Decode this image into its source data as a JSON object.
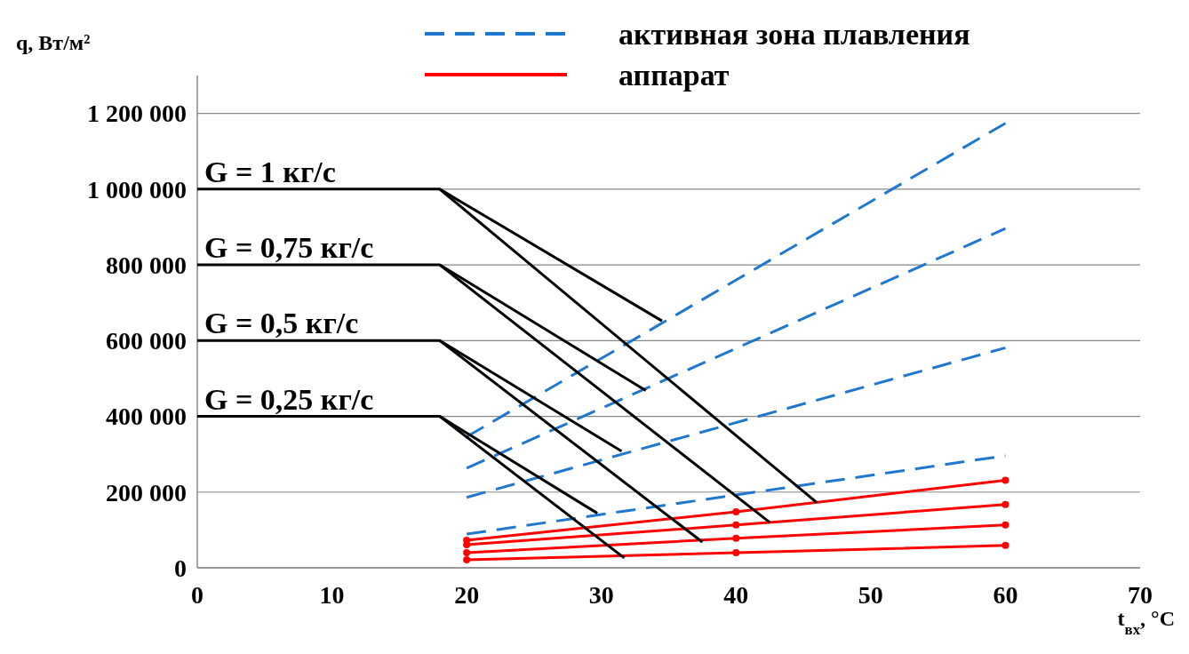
{
  "chart_data": {
    "type": "line",
    "xlabel": "t$_{вх}$, °C",
    "ylabel": "q, Вт/м²",
    "xlim": [
      0,
      70
    ],
    "xticks": [
      0,
      10,
      20,
      30,
      40,
      50,
      60,
      70
    ],
    "ylim": [
      0,
      1300000
    ],
    "yticks": [
      0,
      {
        "value": 200000,
        "label": "200 000"
      },
      {
        "value": 400000,
        "label": "400 000"
      },
      {
        "value": 600000,
        "label": "600 000"
      },
      {
        "value": 800000,
        "label": "800 000"
      },
      {
        "value": 1000000,
        "label": "1 000 000"
      },
      {
        "value": 1200000,
        "label": "1 200 000"
      }
    ],
    "grid": "y",
    "legend": "top right",
    "annotations": [
      "G = 1 кг/с",
      "G = 0,75 кг/с",
      "G = 0,5 кг/с",
      "G = 0,25 кг/с"
    ],
    "series": [
      {
        "name": "активная зона плавления",
        "color": "#1f77d0",
        "x": [
          20,
          60
        ],
        "values": [
          346000,
          1174000
        ],
        "line_style": "dashed",
        "marker": "none"
      },
      {
        "color": "#1f77d0",
        "x": [
          20,
          60
        ],
        "values": [
          263000,
          896000
        ],
        "line_style": "dashed",
        "marker": "none"
      },
      {
        "color": "#1f77d0",
        "x": [
          20,
          60
        ],
        "values": [
          186000,
          581000
        ],
        "line_style": "dashed",
        "marker": "none"
      },
      {
        "color": "#1f77d0",
        "x": [
          20,
          60
        ],
        "values": [
          89000,
          296000
        ],
        "line_style": "dashed",
        "marker": "none"
      },
      {
        "name": "аппарат",
        "color": "#ff0000",
        "x": [
          20,
          40,
          60
        ],
        "values": [
          73000,
          148000,
          231000
        ],
        "line_style": "solid",
        "marker": "circle"
      },
      {
        "color": "#ff0000",
        "x": [
          20,
          40,
          60
        ],
        "values": [
          61000,
          113000,
          167000
        ],
        "line_style": "solid",
        "marker": "circle"
      },
      {
        "color": "#ff0000",
        "x": [
          20,
          40,
          60
        ],
        "values": [
          40000,
          78000,
          113000
        ],
        "line_style": "solid",
        "marker": "circle"
      },
      {
        "color": "#ff0000",
        "x": [
          20,
          40,
          60
        ],
        "values": [
          21000,
          40000,
          59000
        ],
        "line_style": "solid",
        "marker": "circle"
      },
      {
        "color": "#000000",
        "x": [
          0,
          18,
          34.5
        ],
        "values": [
          1000000,
          1000000,
          652000
        ],
        "line_style": "solid",
        "marker": "none"
      },
      {
        "color": "#000000",
        "x": [
          18,
          46
        ],
        "values": [
          1000000,
          172000
        ],
        "line_style": "solid",
        "marker": "none"
      },
      {
        "color": "#000000",
        "x": [
          0,
          18,
          33.3
        ],
        "values": [
          800000,
          800000,
          468000
        ],
        "line_style": "solid",
        "marker": "none"
      },
      {
        "color": "#000000",
        "x": [
          18,
          42.5
        ],
        "values": [
          800000,
          120000
        ],
        "line_style": "solid",
        "marker": "none"
      },
      {
        "color": "#000000",
        "x": [
          0,
          18,
          31.5
        ],
        "values": [
          600000,
          600000,
          308000
        ],
        "line_style": "solid",
        "marker": "none"
      },
      {
        "color": "#000000",
        "x": [
          18,
          37.5
        ],
        "values": [
          600000,
          68000
        ],
        "line_style": "solid",
        "marker": "none"
      },
      {
        "color": "#000000",
        "x": [
          0,
          18,
          29.7
        ],
        "values": [
          400000,
          400000,
          144000
        ],
        "line_style": "solid",
        "marker": "none"
      },
      {
        "color": "#000000",
        "x": [
          18,
          31.7
        ],
        "values": [
          400000,
          26000
        ],
        "line_style": "solid",
        "marker": "none"
      }
    ]
  }
}
